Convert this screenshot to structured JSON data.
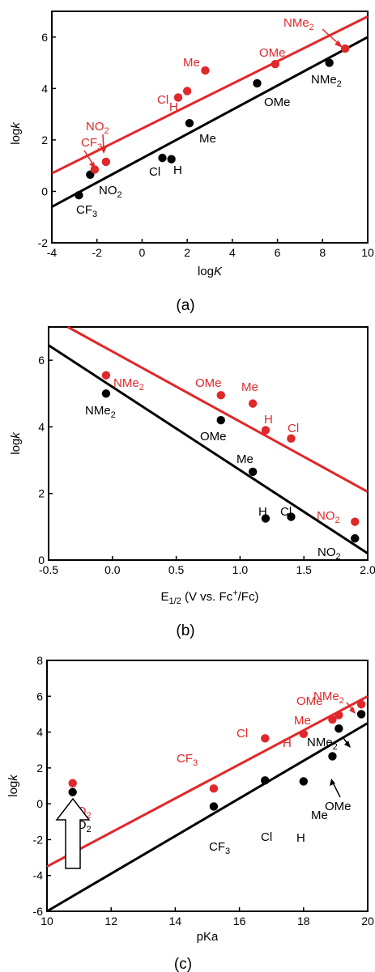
{
  "colors": {
    "black_series": "#000000",
    "red_series": "#e0282a",
    "axis": "#000000"
  },
  "chart_data": [
    {
      "type": "scatter",
      "panel_label": "(a)",
      "xlabel": "logK",
      "ylabel": "logk",
      "xlim": [
        -4,
        10
      ],
      "ylim": [
        -2,
        7
      ],
      "x_ticks": [
        -4,
        -2,
        0,
        2,
        4,
        6,
        8,
        10
      ],
      "y_ticks": [
        -2,
        0,
        2,
        4,
        6
      ],
      "grid": false,
      "series": [
        {
          "color": "#000000",
          "points": [
            {
              "label": "CF3",
              "x": -2.8,
              "y": -0.15
            },
            {
              "label": "NO2",
              "x": -2.3,
              "y": 0.65
            },
            {
              "label": "Cl",
              "x": 0.9,
              "y": 1.3
            },
            {
              "label": "H",
              "x": 1.3,
              "y": 1.25
            },
            {
              "label": "Me",
              "x": 2.1,
              "y": 2.65
            },
            {
              "label": "OMe",
              "x": 5.1,
              "y": 4.2
            },
            {
              "label": "NMe2",
              "x": 8.3,
              "y": 5.0
            }
          ],
          "fit": [
            [
              -4,
              -0.6
            ],
            [
              10,
              6.0
            ]
          ]
        },
        {
          "color": "#e0282a",
          "points": [
            {
              "label": "CF3",
              "x": -2.1,
              "y": 0.85
            },
            {
              "label": "NO2",
              "x": -1.6,
              "y": 1.15
            },
            {
              "label": "Cl",
              "x": 1.6,
              "y": 3.65
            },
            {
              "label": "H",
              "x": 2.0,
              "y": 3.9
            },
            {
              "label": "Me",
              "x": 2.8,
              "y": 4.7
            },
            {
              "label": "OMe",
              "x": 5.9,
              "y": 4.95
            },
            {
              "label": "NMe2",
              "x": 9.0,
              "y": 5.55
            }
          ],
          "fit": [
            [
              -4,
              0.7
            ],
            [
              10,
              6.8
            ]
          ]
        }
      ]
    },
    {
      "type": "scatter",
      "panel_label": "(b)",
      "xlabel": "E1/2 (V vs. Fc+/Fc)",
      "ylabel": "logk",
      "xlim": [
        -0.5,
        2.0
      ],
      "ylim": [
        0,
        7
      ],
      "x_ticks": [
        -0.5,
        0.0,
        0.5,
        1.0,
        1.5,
        2.0
      ],
      "y_ticks": [
        0,
        2,
        4,
        6
      ],
      "grid": false,
      "series": [
        {
          "color": "#000000",
          "points": [
            {
              "label": "NMe2",
              "x": -0.05,
              "y": 5.0
            },
            {
              "label": "OMe",
              "x": 0.85,
              "y": 4.2
            },
            {
              "label": "Me",
              "x": 1.1,
              "y": 2.65
            },
            {
              "label": "H",
              "x": 1.2,
              "y": 1.25
            },
            {
              "label": "Cl",
              "x": 1.4,
              "y": 1.3
            },
            {
              "label": "NO2",
              "x": 1.9,
              "y": 0.65
            }
          ],
          "fit": [
            [
              -0.5,
              6.45
            ],
            [
              2.0,
              0.2
            ]
          ]
        },
        {
          "color": "#e0282a",
          "points": [
            {
              "label": "NMe2",
              "x": -0.05,
              "y": 5.55
            },
            {
              "label": "OMe",
              "x": 0.85,
              "y": 4.95
            },
            {
              "label": "Me",
              "x": 1.1,
              "y": 4.7
            },
            {
              "label": "H",
              "x": 1.2,
              "y": 3.9
            },
            {
              "label": "Cl",
              "x": 1.4,
              "y": 3.65
            },
            {
              "label": "NO2",
              "x": 1.9,
              "y": 1.15
            }
          ],
          "fit": [
            [
              -0.35,
              7.0
            ],
            [
              2.0,
              2.05
            ]
          ]
        }
      ]
    },
    {
      "type": "scatter",
      "panel_label": "(c)",
      "xlabel": "pKa",
      "ylabel": "logk",
      "xlim": [
        10,
        20
      ],
      "ylim": [
        -6,
        8
      ],
      "x_ticks": [
        10,
        12,
        14,
        16,
        18,
        20
      ],
      "y_ticks": [
        -6,
        -4,
        -2,
        0,
        2,
        4,
        6,
        8
      ],
      "grid": false,
      "series": [
        {
          "color": "#000000",
          "points": [
            {
              "label": "NO2",
              "x": 10.8,
              "y": 0.65
            },
            {
              "label": "CF3",
              "x": 15.2,
              "y": -0.15
            },
            {
              "label": "Cl",
              "x": 16.8,
              "y": 1.3
            },
            {
              "label": "H",
              "x": 18.0,
              "y": 1.25
            },
            {
              "label": "Me",
              "x": 18.9,
              "y": 2.65
            },
            {
              "label": "OMe",
              "x": 19.1,
              "y": 4.2
            },
            {
              "label": "NMe2",
              "x": 19.8,
              "y": 5.0
            }
          ],
          "fit": [
            [
              10,
              -6.0
            ],
            [
              20,
              4.5
            ]
          ]
        },
        {
          "color": "#e0282a",
          "points": [
            {
              "label": "NO2",
              "x": 10.8,
              "y": 1.15
            },
            {
              "label": "CF3",
              "x": 15.2,
              "y": 0.85
            },
            {
              "label": "Cl",
              "x": 16.8,
              "y": 3.65
            },
            {
              "label": "H",
              "x": 18.0,
              "y": 3.9
            },
            {
              "label": "Me",
              "x": 18.9,
              "y": 4.7
            },
            {
              "label": "OMe",
              "x": 19.1,
              "y": 4.95
            },
            {
              "label": "NMe2",
              "x": 19.8,
              "y": 5.55
            }
          ],
          "fit": [
            [
              10,
              -3.5
            ],
            [
              20,
              6.0
            ]
          ]
        }
      ]
    }
  ]
}
